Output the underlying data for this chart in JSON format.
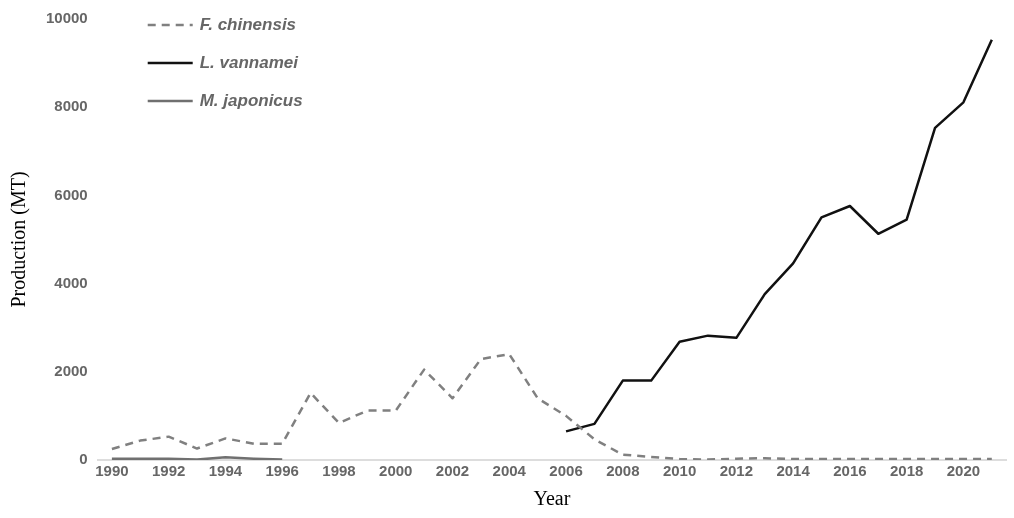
{
  "chart_data": {
    "type": "line",
    "xlabel": "Year",
    "ylabel": "Production (MT)",
    "categories": [
      "1990",
      null,
      "1992",
      null,
      "1994",
      null,
      "1996",
      null,
      "1998",
      null,
      "2000",
      null,
      "2002",
      null,
      "2004",
      null,
      "2006",
      null,
      "2008",
      null,
      "2010",
      null,
      "2012",
      null,
      "2014",
      null,
      "2016",
      null,
      "2018",
      null,
      "2020",
      null
    ],
    "ylim": [
      0,
      10000
    ],
    "yticks": [
      0,
      2000,
      4000,
      6000,
      8000,
      10000
    ],
    "grid": false,
    "legend": "top left",
    "marker": "none",
    "series": [
      {
        "name": "F. chinensis",
        "color": "#808080",
        "line_style": "dashed",
        "values": [
          250,
          440,
          530,
          260,
          490,
          370,
          370,
          1520,
          840,
          1120,
          1120,
          2050,
          1400,
          2290,
          2400,
          1400,
          1000,
          470,
          120,
          70,
          20,
          10,
          30,
          40,
          20,
          20,
          20,
          20,
          20,
          20,
          20,
          20
        ]
      },
      {
        "name": "L. vannamei",
        "color": "#111111",
        "line_style": "solid",
        "values": [
          null,
          null,
          null,
          null,
          null,
          null,
          null,
          null,
          null,
          null,
          null,
          null,
          null,
          null,
          null,
          null,
          650,
          820,
          1800,
          1800,
          2680,
          2820,
          2770,
          3760,
          4460,
          5500,
          5760,
          5130,
          5450,
          7530,
          8110,
          9530
        ]
      },
      {
        "name": "M. japonicus",
        "color": "#707070",
        "line_style": "solid",
        "values": [
          30,
          30,
          30,
          10,
          60,
          30,
          10,
          null,
          null,
          null,
          null,
          null,
          null,
          null,
          null,
          null,
          null,
          null,
          null,
          null,
          null,
          null,
          null,
          null,
          null,
          null,
          null,
          null,
          null,
          null,
          null,
          null
        ]
      }
    ]
  }
}
